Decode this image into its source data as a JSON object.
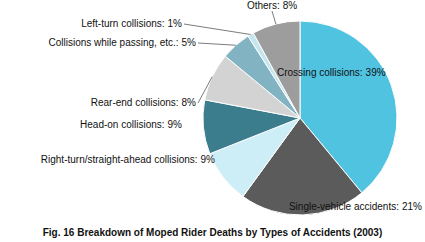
{
  "chart_data": {
    "type": "pie",
    "title": "Fig. 16  Breakdown of Moped Rider Deaths by Types of Accidents (2003)",
    "categories": [
      "Crossing collisions:",
      "Single-vehicle accidents:",
      "Right-turn/straight-ahead collisions:",
      "Head-on collisions:",
      "Rear-end collisions:",
      "Collisions while passing, etc.:",
      "Left-turn collisions:",
      "Others:"
    ],
    "values": [
      39,
      21,
      9,
      9,
      8,
      5,
      1,
      8
    ],
    "value_labels": [
      "39%",
      "21%",
      "9%",
      "9%",
      "8%",
      "5%",
      "1%",
      "8%"
    ],
    "colors": [
      "#4fc3e0",
      "#5b5b5b",
      "#cdeef6",
      "#3b7d8c",
      "#d3d3d3",
      "#82b3c2",
      "#c3e6f0",
      "#9d9d9d"
    ],
    "data_labels": true
  }
}
